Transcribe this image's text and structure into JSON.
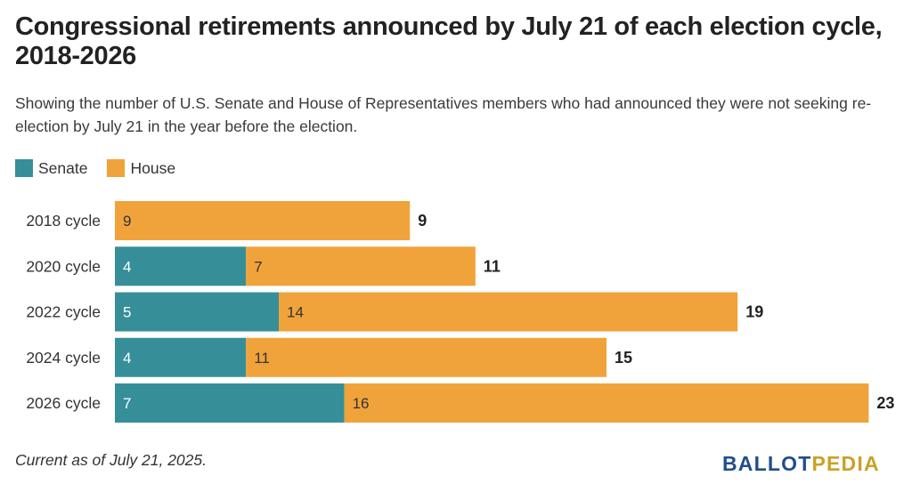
{
  "title": "Congressional retirements announced by July 21 of each election cycle, 2018-2026",
  "subtitle": "Showing the number of U.S. Senate and House of Representatives members who had announced they were not seeking re-election by July 21 in the year before the election.",
  "footnote": "Current as of July 21, 2025.",
  "logo": {
    "part1": "BALLOT",
    "part2": "PEDIA"
  },
  "colors": {
    "senate": "#368f98",
    "house": "#f0a33a"
  },
  "chart_data": {
    "type": "bar",
    "orientation": "horizontal",
    "stacked": true,
    "categories": [
      "2018 cycle",
      "2020 cycle",
      "2022 cycle",
      "2024 cycle",
      "2026 cycle"
    ],
    "series": [
      {
        "name": "Senate",
        "values": [
          0,
          4,
          5,
          4,
          7
        ]
      },
      {
        "name": "House",
        "values": [
          9,
          7,
          14,
          11,
          16
        ]
      }
    ],
    "totals": [
      9,
      11,
      19,
      15,
      23
    ],
    "legend": "top-left",
    "grid": false
  }
}
